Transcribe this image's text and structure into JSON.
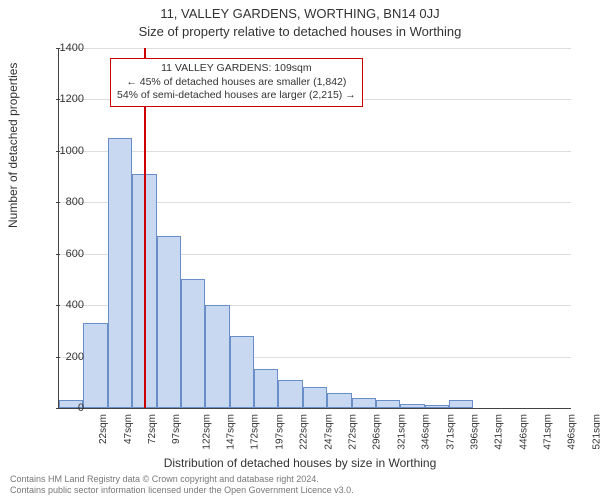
{
  "header": {
    "line1": "11, VALLEY GARDENS, WORTHING, BN14 0JJ",
    "line2": "Size of property relative to detached houses in Worthing"
  },
  "chart": {
    "type": "histogram",
    "ylabel": "Number of detached properties",
    "xlabel": "Distribution of detached houses by size in Worthing",
    "ylim": [
      0,
      1400
    ],
    "ytick_step": 200,
    "yticks": [
      0,
      200,
      400,
      600,
      800,
      1000,
      1200,
      1400
    ],
    "categories": [
      "22sqm",
      "47sqm",
      "72sqm",
      "97sqm",
      "122sqm",
      "147sqm",
      "172sqm",
      "197sqm",
      "222sqm",
      "247sqm",
      "272sqm",
      "296sqm",
      "321sqm",
      "346sqm",
      "371sqm",
      "396sqm",
      "421sqm",
      "446sqm",
      "471sqm",
      "496sqm",
      "521sqm"
    ],
    "values": [
      30,
      330,
      1050,
      910,
      670,
      500,
      400,
      280,
      150,
      110,
      80,
      60,
      40,
      30,
      15,
      10,
      30,
      0,
      0,
      0,
      0
    ],
    "marker_index": 3.5,
    "marker_color": "#cc0000",
    "bar_fill": "#c8d8f0",
    "bar_border": "#6a8fc8",
    "grid_color": "#dddddd",
    "axis_color": "#444444",
    "background_color": "#ffffff",
    "bar_width_ratio": 1.0,
    "label_fontsize": 12,
    "tick_fontsize": 11,
    "xtick_fontsize": 10,
    "title_fontsize": 13
  },
  "annotation": {
    "line1": "11 VALLEY GARDENS: 109sqm",
    "line2": "← 45% of detached houses are smaller (1,842)",
    "line3": "54% of semi-detached houses are larger (2,215) →",
    "border_color": "#cc0000",
    "background": "#ffffff",
    "fontsize": 10.5
  },
  "footer": {
    "line1": "Contains HM Land Registry data © Crown copyright and database right 2024.",
    "line2": "Contains public sector information licensed under the Open Government Licence v3.0."
  }
}
